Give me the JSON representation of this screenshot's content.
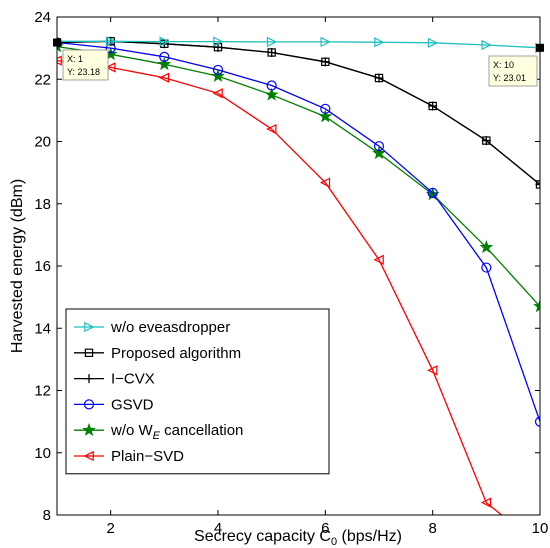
{
  "chart_data": {
    "type": "line",
    "xlabel": "Secrecy capacity C",
    "xlabel_sub": "0",
    "xlabel_unit": "(bps/Hz)",
    "ylabel": "Harvested energy (dBm)",
    "xlim": [
      1,
      10
    ],
    "ylim": [
      8,
      24
    ],
    "xticks": [
      2,
      4,
      6,
      8,
      10
    ],
    "yticks": [
      8,
      10,
      12,
      14,
      16,
      18,
      20,
      22,
      24
    ],
    "x": [
      1,
      2,
      3,
      4,
      5,
      6,
      7,
      8,
      9,
      10
    ],
    "legend_position": "bottom-left",
    "series": [
      {
        "name": "w/o eveasdropper",
        "color": "#1fbfbf",
        "marker": "triangle-right",
        "values": [
          23.22,
          23.22,
          23.21,
          23.21,
          23.2,
          23.2,
          23.19,
          23.17,
          23.1,
          23.01
        ]
      },
      {
        "name": "Proposed algorithm",
        "color": "#000000",
        "marker": "square",
        "values": [
          23.18,
          23.22,
          23.14,
          23.03,
          22.86,
          22.56,
          22.04,
          21.14,
          20.03,
          18.62
        ]
      },
      {
        "name": "I−CVX",
        "color": "#000000",
        "marker": "plus",
        "values": [
          23.18,
          23.22,
          23.14,
          23.03,
          22.86,
          22.56,
          22.04,
          21.14,
          20.03,
          18.62
        ]
      },
      {
        "name": "GSVD",
        "color": "#0000ff",
        "marker": "circle",
        "values": [
          23.18,
          23.0,
          22.72,
          22.3,
          21.8,
          21.05,
          19.85,
          18.35,
          15.95,
          11.0
        ]
      },
      {
        "name": "w/o W",
        "name_sub": "E",
        "name_suffix": " cancellation",
        "color": "#008000",
        "marker": "star",
        "values": [
          23.05,
          22.8,
          22.48,
          22.1,
          21.5,
          20.8,
          19.62,
          18.3,
          16.6,
          14.7
        ]
      },
      {
        "name": "Plain−SVD",
        "color": "#ff0000",
        "marker": "triangle-left",
        "values": [
          22.6,
          22.38,
          22.05,
          21.55,
          20.4,
          18.68,
          16.2,
          12.65,
          8.4,
          7.0
        ]
      }
    ],
    "datatips": [
      {
        "x_text": "X: 1",
        "y_text": "Y: 23.18"
      },
      {
        "x_text": "X: 10",
        "y_text": "Y: 23.01"
      }
    ]
  }
}
